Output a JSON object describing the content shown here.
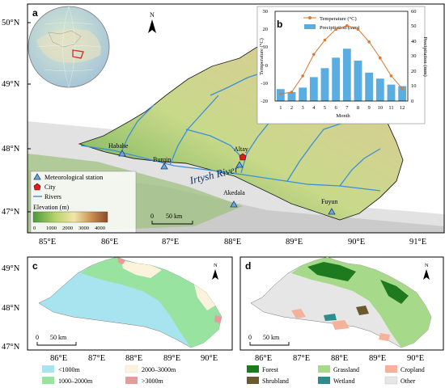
{
  "panel_a": {
    "label": "a",
    "north": "N",
    "lat_labels": [
      "50°N",
      "49°N",
      "48°N",
      "47°N"
    ],
    "lon_labels": [
      "85°E",
      "86°E",
      "87°E",
      "88°E",
      "89°E",
      "90°E",
      "91°E"
    ],
    "places": [
      "Habahe",
      "Burqin",
      "Altay",
      "Akedala",
      "Fuyun"
    ],
    "river_label": "Irtysh River",
    "legend": {
      "station": "Meteorological station",
      "city": "City",
      "rivers": "Rivers",
      "elevation_title": "Elevation (m)",
      "elevation_ticks": [
        "0",
        "1000",
        "2000",
        "3000",
        "4000"
      ]
    },
    "scalebar": {
      "zero": "0",
      "dist": "50 km"
    }
  },
  "panel_b": {
    "label": "b",
    "legend_temp": "Temperature (°C)",
    "legend_precip": "Precipitation (mm)",
    "ylabel_left": "Temperature (°C)",
    "ylabel_right": "Precipitation (mm)",
    "xlabel": "Month",
    "left_ticks": [
      "30",
      "20",
      "10",
      "0",
      "-10",
      "-20"
    ],
    "right_ticks": [
      "60",
      "50",
      "40",
      "30",
      "20",
      "10",
      "0"
    ],
    "month_ticks": [
      "1",
      "2",
      "3",
      "4",
      "5",
      "6",
      "7",
      "8",
      "9",
      "10",
      "11",
      "12"
    ]
  },
  "chart_data": {
    "type": "bar",
    "categories": [
      1,
      2,
      3,
      4,
      5,
      6,
      7,
      8,
      9,
      10,
      11,
      12
    ],
    "series": [
      {
        "name": "Temperature (°C)",
        "type": "line",
        "axis": "left",
        "values": [
          -16,
          -15,
          -6,
          6,
          14,
          20,
          22,
          20,
          13,
          4,
          -6,
          -13
        ],
        "color": "#d97a35"
      },
      {
        "name": "Precipitation (mm)",
        "type": "bar",
        "axis": "right",
        "values": [
          8,
          6,
          9,
          16,
          22,
          29,
          35,
          27,
          19,
          15,
          11,
          10
        ],
        "color": "#5aade0"
      }
    ],
    "xlabel": "Month",
    "ylabel_left": "Temperature (°C)",
    "ylabel_right": "Precipitation (mm)",
    "ylim_left": [
      -20,
      30
    ],
    "ylim_right": [
      0,
      60
    ],
    "grid": false,
    "legend": "top"
  },
  "panel_c": {
    "label": "c",
    "north": "N",
    "lat_labels": [
      "48°N",
      "47°N"
    ],
    "lon_labels": [
      "86°E",
      "87°E",
      "88°E",
      "89°E",
      "90°E"
    ],
    "scalebar": {
      "zero": "0",
      "dist": "50 km"
    },
    "legend": [
      {
        "label": "<1000m",
        "color": "#a8e4f0"
      },
      {
        "label": "2000–3000m",
        "color": "#fdf3dd"
      },
      {
        "label": "1000–2000m",
        "color": "#98e3a0"
      },
      {
        "label": ">3000m",
        "color": "#e89b9b"
      }
    ]
  },
  "panel_d": {
    "label": "d",
    "north": "N",
    "lon_labels": [
      "86°E",
      "87°E",
      "88°E",
      "89°E",
      "90°E"
    ],
    "scalebar": {
      "zero": "0",
      "dist": "50 km"
    },
    "legend": [
      {
        "label": "Forest",
        "color": "#1e7a1e"
      },
      {
        "label": "Grassland",
        "color": "#a7d98a"
      },
      {
        "label": "Cropland",
        "color": "#f4b29a"
      },
      {
        "label": "Shrubland",
        "color": "#6b5a2e"
      },
      {
        "label": "Wetland",
        "color": "#2e8c8c"
      },
      {
        "label": "Other",
        "color": "#e6e6e6"
      }
    ]
  }
}
